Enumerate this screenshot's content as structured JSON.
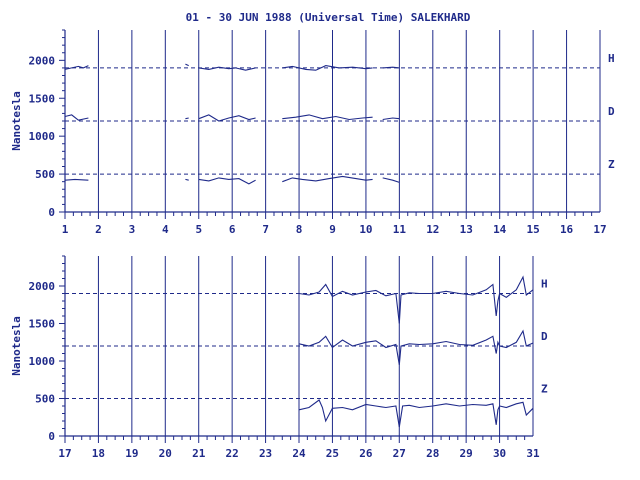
{
  "chart_data": {
    "type": "line",
    "title": "01 - 30 JUN 1988 (Universal Time) SALEKHARD",
    "ylabel": "Nanotesla",
    "colors": {
      "axis": "#1f2a8a",
      "trace": "#1f2a8a",
      "background": "#ffffff"
    },
    "grid": "vertical lines at each day boundary; dashed horizontal baselines per component",
    "baselines": [
      {
        "name": "H",
        "value": 1900
      },
      {
        "name": "D",
        "value": 1200
      },
      {
        "name": "Z",
        "value": 500
      }
    ],
    "panels": [
      {
        "xlim": [
          1,
          17
        ],
        "ylim": [
          0,
          2400
        ],
        "xticks": [
          "1",
          "2",
          "3",
          "4",
          "5",
          "6",
          "7",
          "8",
          "9",
          "10",
          "11",
          "12",
          "13",
          "14",
          "15",
          "16",
          "17"
        ],
        "yticks": [
          "0",
          "500",
          "1000",
          "1500",
          "2000"
        ],
        "series": [
          {
            "name": "H",
            "segments": [
              {
                "x": [
                  1.0,
                  1.2,
                  1.4,
                  1.55,
                  1.7
                ],
                "y": [
                  1880,
                  1900,
                  1920,
                  1900,
                  1930
                ]
              },
              {
                "x": [
                  4.6,
                  4.7
                ],
                "y": [
                  1950,
                  1930
                ]
              },
              {
                "x": [
                  5.0,
                  5.3,
                  5.6,
                  5.9,
                  6.1,
                  6.4,
                  6.7
                ],
                "y": [
                  1900,
                  1880,
                  1910,
                  1890,
                  1900,
                  1870,
                  1900
                ]
              },
              {
                "x": [
                  7.5,
                  7.8,
                  8.2,
                  8.5,
                  8.8,
                  9.2,
                  9.6,
                  10.0,
                  10.2
                ],
                "y": [
                  1900,
                  1920,
                  1880,
                  1870,
                  1930,
                  1900,
                  1910,
                  1890,
                  1900
                ]
              },
              {
                "x": [
                  10.5,
                  10.8,
                  11.0
                ],
                "y": [
                  1900,
                  1910,
                  1900
                ]
              }
            ]
          },
          {
            "name": "D",
            "segments": [
              {
                "x": [
                  1.0,
                  1.2,
                  1.4,
                  1.7
                ],
                "y": [
                  1260,
                  1280,
                  1210,
                  1240
                ]
              },
              {
                "x": [
                  4.6,
                  4.7
                ],
                "y": [
                  1230,
                  1240
                ]
              },
              {
                "x": [
                  5.0,
                  5.3,
                  5.6,
                  5.9,
                  6.2,
                  6.5,
                  6.7
                ],
                "y": [
                  1230,
                  1280,
                  1200,
                  1240,
                  1270,
                  1220,
                  1240
                ]
              },
              {
                "x": [
                  7.5,
                  7.9,
                  8.3,
                  8.7,
                  9.1,
                  9.5,
                  9.9,
                  10.2
                ],
                "y": [
                  1230,
                  1250,
                  1280,
                  1230,
                  1260,
                  1220,
                  1240,
                  1250
                ]
              },
              {
                "x": [
                  10.5,
                  10.8,
                  11.0
                ],
                "y": [
                  1220,
                  1240,
                  1230
                ]
              }
            ]
          },
          {
            "name": "Z",
            "segments": [
              {
                "x": [
                  1.0,
                  1.3,
                  1.7
                ],
                "y": [
                  420,
                  430,
                  420
                ]
              },
              {
                "x": [
                  4.6,
                  4.7
                ],
                "y": [
                  430,
                  420
                ]
              },
              {
                "x": [
                  5.0,
                  5.3,
                  5.6,
                  5.9,
                  6.2,
                  6.5,
                  6.7
                ],
                "y": [
                  430,
                  410,
                  450,
                  430,
                  440,
                  370,
                  420
                ]
              },
              {
                "x": [
                  7.5,
                  7.8,
                  8.1,
                  8.5,
                  8.9,
                  9.3,
                  9.7,
                  10.0,
                  10.2
                ],
                "y": [
                  400,
                  450,
                  430,
                  410,
                  440,
                  470,
                  440,
                  420,
                  430
                ]
              },
              {
                "x": [
                  10.5,
                  10.8,
                  11.0
                ],
                "y": [
                  450,
                  420,
                  390
                ]
              }
            ]
          }
        ]
      },
      {
        "xlim": [
          17,
          31
        ],
        "ylim": [
          0,
          2400
        ],
        "xticks": [
          "17",
          "18",
          "19",
          "20",
          "21",
          "22",
          "23",
          "24",
          "25",
          "26",
          "27",
          "28",
          "29",
          "30",
          "31"
        ],
        "yticks": [
          "0",
          "500",
          "1000",
          "1500",
          "2000"
        ],
        "series": [
          {
            "name": "H",
            "segments": [
              {
                "x": [
                  24.0,
                  24.3,
                  24.6,
                  24.8,
                  25.0,
                  25.3,
                  25.6,
                  26.0,
                  26.3,
                  26.6,
                  26.9,
                  27.0,
                  27.05,
                  27.3,
                  27.6,
                  28.0,
                  28.4,
                  28.8,
                  29.2,
                  29.6,
                  29.8,
                  29.9,
                  29.95,
                  30.0,
                  30.2,
                  30.5,
                  30.7,
                  30.8,
                  31.0
                ],
                "y": [
                  1900,
                  1880,
                  1920,
                  2020,
                  1860,
                  1930,
                  1880,
                  1920,
                  1940,
                  1870,
                  1900,
                  1500,
                  1880,
                  1910,
                  1900,
                  1900,
                  1930,
                  1900,
                  1880,
                  1950,
                  2020,
                  1600,
                  1800,
                  1900,
                  1850,
                  1950,
                  2120,
                  1880,
                  1950
                ]
              }
            ]
          },
          {
            "name": "D",
            "segments": [
              {
                "x": [
                  24.0,
                  24.3,
                  24.6,
                  24.8,
                  25.0,
                  25.3,
                  25.6,
                  26.0,
                  26.3,
                  26.6,
                  26.9,
                  27.0,
                  27.05,
                  27.3,
                  27.6,
                  28.0,
                  28.4,
                  28.8,
                  29.2,
                  29.6,
                  29.8,
                  29.9,
                  29.95,
                  30.0,
                  30.2,
                  30.5,
                  30.7,
                  30.8,
                  31.0
                ],
                "y": [
                  1230,
                  1200,
                  1250,
                  1330,
                  1180,
                  1280,
                  1200,
                  1250,
                  1270,
                  1180,
                  1220,
                  950,
                  1200,
                  1230,
                  1220,
                  1230,
                  1260,
                  1220,
                  1210,
                  1280,
                  1330,
                  1100,
                  1250,
                  1200,
                  1180,
                  1250,
                  1400,
                  1200,
                  1240
                ]
              }
            ]
          },
          {
            "name": "Z",
            "segments": [
              {
                "x": [
                  24.0,
                  24.3,
                  24.6,
                  24.7,
                  24.8,
                  25.0,
                  25.3,
                  25.6,
                  26.0,
                  26.3,
                  26.6,
                  26.9,
                  27.0,
                  27.1,
                  27.3,
                  27.6,
                  28.0,
                  28.4,
                  28.8,
                  29.2,
                  29.6,
                  29.8,
                  29.9,
                  29.95,
                  30.0,
                  30.2,
                  30.5,
                  30.7,
                  30.8,
                  31.0
                ],
                "y": [
                  350,
                  380,
                  480,
                  380,
                  200,
                  370,
                  380,
                  350,
                  420,
                  400,
                  380,
                  400,
                  120,
                  400,
                  410,
                  380,
                  400,
                  430,
                  400,
                  420,
                  410,
                  430,
                  150,
                  350,
                  400,
                  380,
                  430,
                  450,
                  280,
                  370
                ]
              }
            ]
          }
        ]
      }
    ]
  }
}
